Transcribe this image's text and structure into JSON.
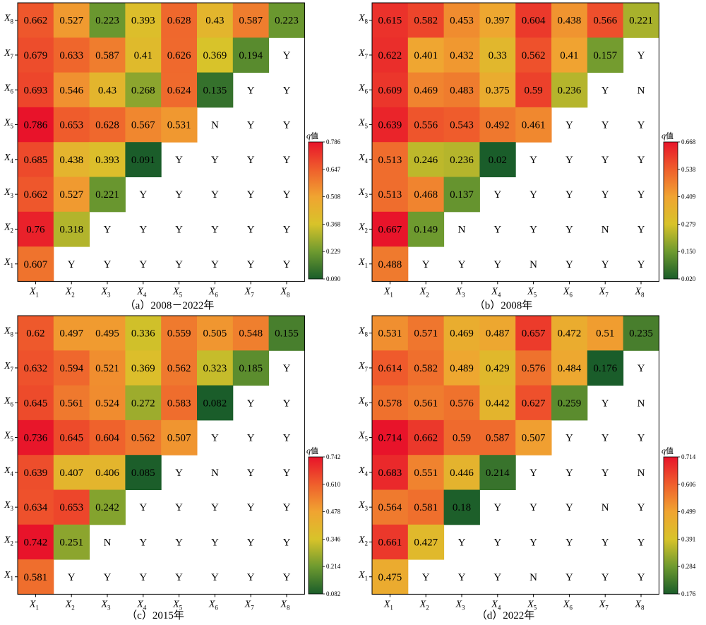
{
  "chart_data": [
    {
      "type": "heatmap",
      "caption": "（a）2008－2022年",
      "categories": [
        "X1",
        "X2",
        "X3",
        "X4",
        "X5",
        "X6",
        "X7",
        "X8"
      ],
      "colorbar": {
        "title": "q值",
        "ticks": [
          "0.786",
          "0.647",
          "0.508",
          "0.368",
          "0.229",
          "0.090"
        ],
        "min": 0.09,
        "max": 0.786
      },
      "rows": {
        "X8": [
          "0.662",
          "0.527",
          "0.223",
          "0.393",
          "0.628",
          "0.43",
          "0.587",
          "0.223"
        ],
        "X7": [
          "0.679",
          "0.633",
          "0.587",
          "0.41",
          "0.626",
          "0.369",
          "0.194",
          "Y"
        ],
        "X6": [
          "0.693",
          "0.546",
          "0.43",
          "0.268",
          "0.624",
          "0.135",
          "Y",
          "Y"
        ],
        "X5": [
          "0.786",
          "0.653",
          "0.628",
          "0.567",
          "0.531",
          "N",
          "Y",
          "Y"
        ],
        "X4": [
          "0.685",
          "0.438",
          "0.393",
          "0.091",
          "Y",
          "Y",
          "Y",
          "Y"
        ],
        "X3": [
          "0.662",
          "0.527",
          "0.221",
          "Y",
          "Y",
          "Y",
          "Y",
          "Y"
        ],
        "X2": [
          "0.76",
          "0.318",
          "Y",
          "Y",
          "Y",
          "Y",
          "Y",
          "Y"
        ],
        "X1": [
          "0.607",
          "Y",
          "Y",
          "Y",
          "Y",
          "Y",
          "Y",
          "Y"
        ]
      }
    },
    {
      "type": "heatmap",
      "caption": "（b）2008年",
      "categories": [
        "X1",
        "X2",
        "X3",
        "X4",
        "X5",
        "X6",
        "X7",
        "X8"
      ],
      "colorbar": {
        "title": "q值",
        "ticks": [
          "0.668",
          "0.538",
          "0.409",
          "0.279",
          "0.150",
          "0.020"
        ],
        "min": 0.02,
        "max": 0.668
      },
      "rows": {
        "X8": [
          "0.615",
          "0.582",
          "0.453",
          "0.397",
          "0.604",
          "0.438",
          "0.566",
          "0.221"
        ],
        "X7": [
          "0.622",
          "0.401",
          "0.432",
          "0.33",
          "0.562",
          "0.41",
          "0.157",
          "Y"
        ],
        "X6": [
          "0.609",
          "0.469",
          "0.483",
          "0.375",
          "0.59",
          "0.236",
          "Y",
          "N"
        ],
        "X5": [
          "0.639",
          "0.556",
          "0.543",
          "0.492",
          "0.461",
          "Y",
          "Y",
          "Y"
        ],
        "X4": [
          "0.513",
          "0.246",
          "0.236",
          "0.02",
          "Y",
          "Y",
          "Y",
          "Y"
        ],
        "X3": [
          "0.513",
          "0.468",
          "0.137",
          "Y",
          "Y",
          "Y",
          "Y",
          "Y"
        ],
        "X2": [
          "0.667",
          "0.149",
          "N",
          "Y",
          "Y",
          "Y",
          "N",
          "Y"
        ],
        "X1": [
          "0.488",
          "Y",
          "Y",
          "Y",
          "N",
          "Y",
          "Y",
          "Y"
        ]
      }
    },
    {
      "type": "heatmap",
      "caption": "（c）2015年",
      "categories": [
        "X1",
        "X2",
        "X3",
        "X4",
        "X5",
        "X6",
        "X7",
        "X8"
      ],
      "colorbar": {
        "title": "q值",
        "ticks": [
          "0.742",
          "0.610",
          "0.478",
          "0.346",
          "0.214",
          "0.082"
        ],
        "min": 0.082,
        "max": 0.742
      },
      "rows": {
        "X8": [
          "0.62",
          "0.497",
          "0.495",
          "0.336",
          "0.559",
          "0.505",
          "0.548",
          "0.155"
        ],
        "X7": [
          "0.632",
          "0.594",
          "0.521",
          "0.369",
          "0.562",
          "0.323",
          "0.185",
          "Y"
        ],
        "X6": [
          "0.645",
          "0.561",
          "0.524",
          "0.272",
          "0.583",
          "0.082",
          "Y",
          "Y"
        ],
        "X5": [
          "0.736",
          "0.645",
          "0.604",
          "0.562",
          "0.507",
          "Y",
          "Y",
          "Y"
        ],
        "X4": [
          "0.639",
          "0.407",
          "0.406",
          "0.085",
          "Y",
          "N",
          "Y",
          "Y"
        ],
        "X3": [
          "0.634",
          "0.653",
          "0.242",
          "Y",
          "Y",
          "Y",
          "Y",
          "Y"
        ],
        "X2": [
          "0.742",
          "0.251",
          "N",
          "Y",
          "Y",
          "Y",
          "Y",
          "Y"
        ],
        "X1": [
          "0.581",
          "Y",
          "Y",
          "Y",
          "Y",
          "Y",
          "Y",
          "Y"
        ]
      }
    },
    {
      "type": "heatmap",
      "caption": "（d）2022年",
      "categories": [
        "X1",
        "X2",
        "X3",
        "X4",
        "X5",
        "X6",
        "X7",
        "X8"
      ],
      "colorbar": {
        "title": "q值",
        "ticks": [
          "0.714",
          "0.606",
          "0.499",
          "0.391",
          "0.284",
          "0.176"
        ],
        "min": 0.176,
        "max": 0.714
      },
      "rows": {
        "X8": [
          "0.531",
          "0.571",
          "0.469",
          "0.487",
          "0.657",
          "0.472",
          "0.51",
          "0.235"
        ],
        "X7": [
          "0.614",
          "0.582",
          "0.489",
          "0.429",
          "0.576",
          "0.484",
          "0.176",
          "Y"
        ],
        "X6": [
          "0.578",
          "0.561",
          "0.576",
          "0.442",
          "0.627",
          "0.259",
          "Y",
          "N"
        ],
        "X5": [
          "0.714",
          "0.662",
          "0.59",
          "0.587",
          "0.507",
          "Y",
          "Y",
          "Y"
        ],
        "X4": [
          "0.683",
          "0.551",
          "0.446",
          "0.214",
          "Y",
          "Y",
          "Y",
          "N"
        ],
        "X3": [
          "0.564",
          "0.581",
          "0.18",
          "Y",
          "Y",
          "Y",
          "N",
          "Y"
        ],
        "X2": [
          "0.661",
          "0.427",
          "Y",
          "Y",
          "Y",
          "Y",
          "Y",
          "Y"
        ],
        "X1": [
          "0.475",
          "Y",
          "Y",
          "Y",
          "N",
          "Y",
          "Y",
          "Y"
        ]
      }
    }
  ]
}
